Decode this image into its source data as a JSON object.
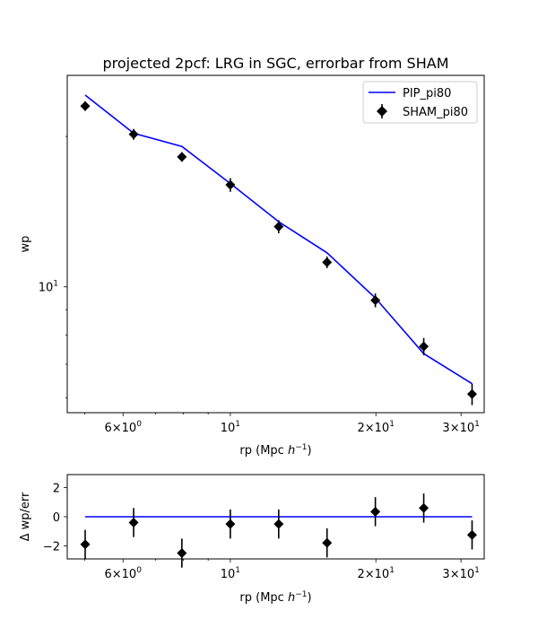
{
  "chart_data": [
    {
      "type": "line",
      "title": "projected 2pcf: LRG in SGC, errorbar from SHAM",
      "xlabel": "rp (Mpc h^-1)",
      "xlabel_main": "rp (Mpc ",
      "xlabel_h": "h",
      "xlabel_exp": "−1",
      "xlabel_close": ")",
      "ylabel": "wp",
      "xscale": "log",
      "yscale": "log",
      "xlim": [
        4.6,
        33.5
      ],
      "ylim": [
        5.6,
        26.5
      ],
      "x_ticks": [
        {
          "value": 6,
          "mant": "6",
          "exp": "0"
        },
        {
          "value": 10,
          "mant": "",
          "exp": "1"
        },
        {
          "value": 20,
          "mant": "2",
          "exp": "1"
        },
        {
          "value": 30,
          "mant": "3",
          "exp": "1"
        }
      ],
      "y_ticks": [
        {
          "value": 10,
          "exp": "1"
        }
      ],
      "legend_position": "top-right",
      "series": [
        {
          "name": "PIP_pi80",
          "kind": "line",
          "color": "#0000ff",
          "x": [
            5.01,
            6.31,
            7.94,
            10.0,
            12.59,
            15.85,
            19.95,
            25.12,
            31.62
          ],
          "y": [
            24.2,
            20.3,
            19.1,
            16.1,
            13.5,
            11.7,
            9.5,
            7.35,
            6.4
          ]
        },
        {
          "name": "SHAM_pi80",
          "kind": "errorbar",
          "color": "#000000",
          "x": [
            5.01,
            6.31,
            7.94,
            10.0,
            12.59,
            15.85,
            19.95,
            25.12,
            31.62
          ],
          "y": [
            23.0,
            20.2,
            18.2,
            16.0,
            13.2,
            11.2,
            9.4,
            7.6,
            6.1
          ],
          "yerr": [
            0.5,
            0.5,
            0.4,
            0.5,
            0.4,
            0.3,
            0.3,
            0.3,
            0.3
          ]
        }
      ]
    },
    {
      "type": "scatter",
      "xlabel": "rp (Mpc h^-1)",
      "ylabel": "Δ wp/err",
      "xscale": "log",
      "xlim": [
        4.6,
        33.5
      ],
      "ylim": [
        -2.9,
        2.9
      ],
      "y_ticks": [
        2,
        0,
        -2
      ],
      "series": [
        {
          "kind": "line",
          "color": "#0000ff",
          "x": [
            5.01,
            31.62
          ],
          "y": [
            0,
            0
          ]
        },
        {
          "kind": "errorbar",
          "color": "#000000",
          "x": [
            5.01,
            6.31,
            7.94,
            10.0,
            12.59,
            15.85,
            19.95,
            25.12,
            31.62
          ],
          "y": [
            -1.9,
            -0.4,
            -2.5,
            -0.5,
            -0.5,
            -1.8,
            0.35,
            0.6,
            -1.25
          ],
          "yerr": [
            1.0,
            1.0,
            1.0,
            1.0,
            1.0,
            1.0,
            1.0,
            1.0,
            1.0
          ]
        }
      ]
    }
  ]
}
